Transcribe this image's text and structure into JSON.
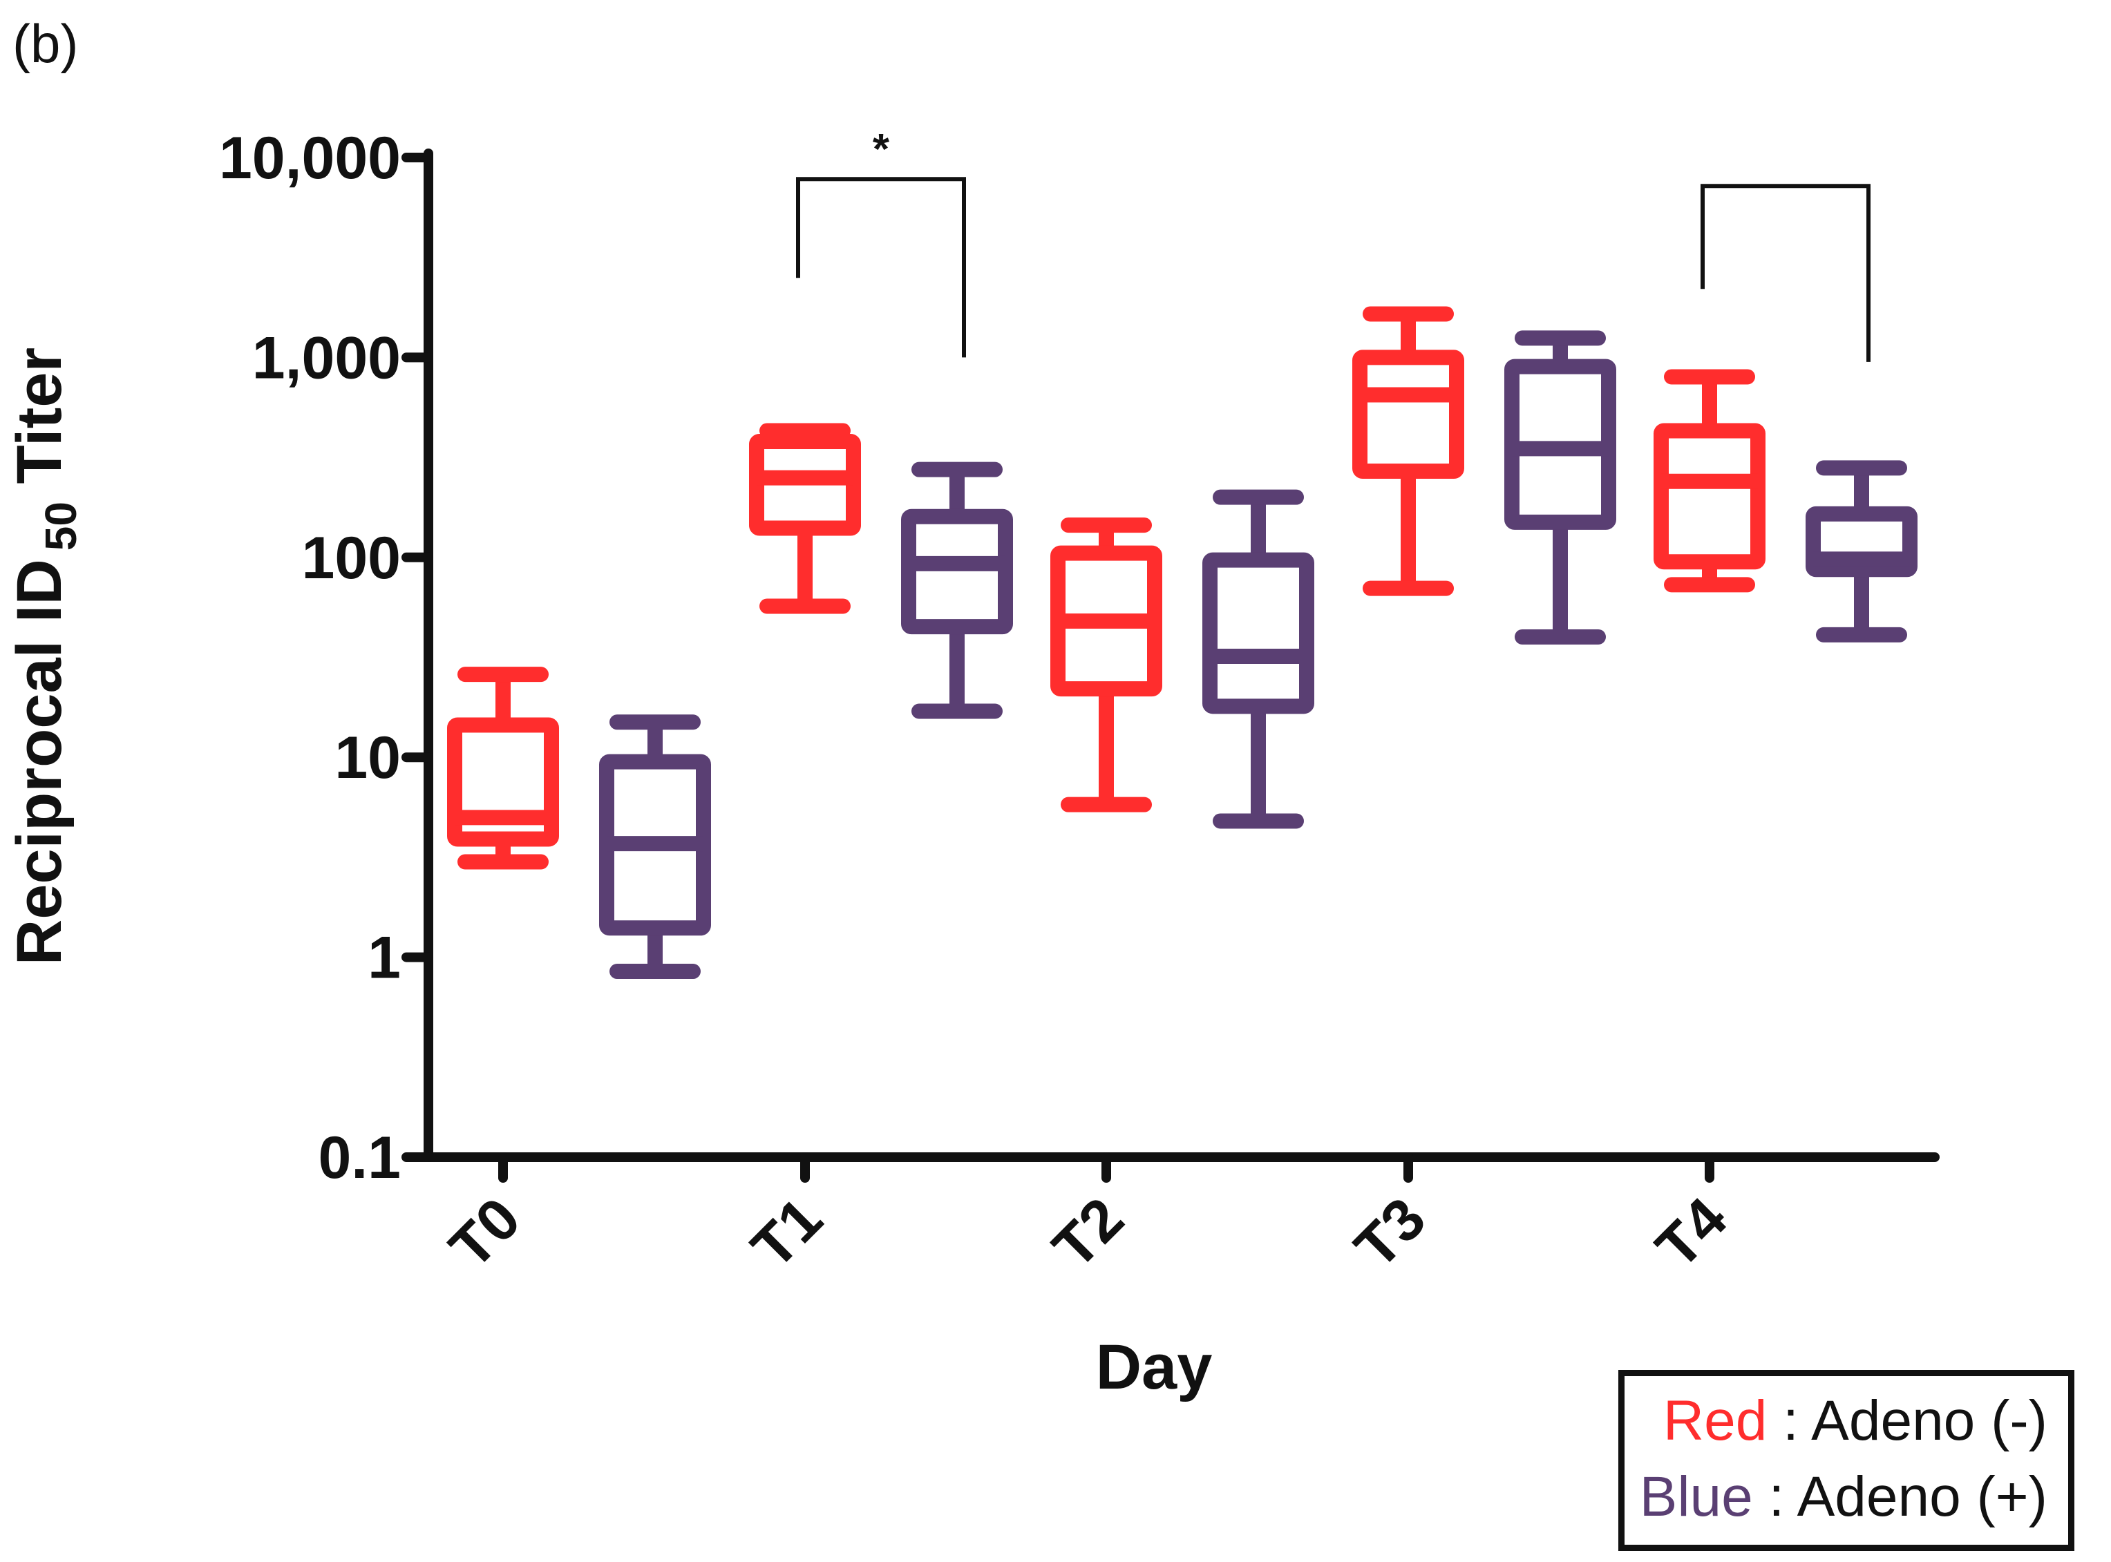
{
  "panel_label": "(b)",
  "colors": {
    "red": "#ff2d2d",
    "blue": "#5a3f73",
    "axis": "#111111"
  },
  "legend": {
    "rows": [
      {
        "color_word": "Red",
        "separator": " : ",
        "text": "Adeno (-)"
      },
      {
        "color_word": "Blue",
        "separator": " : ",
        "text": "Adeno (+)"
      }
    ]
  },
  "chart_data": {
    "type": "box",
    "title": "",
    "xlabel": "Day",
    "ylabel_main": "Reciprocal ID",
    "ylabel_sub": "50",
    "ylabel_tail": " Titer",
    "yscale": "log",
    "ylim": [
      0.1,
      10000
    ],
    "yticks": [
      {
        "value": 0.1,
        "label": "0.1"
      },
      {
        "value": 1,
        "label": "1"
      },
      {
        "value": 10,
        "label": "10"
      },
      {
        "value": 100,
        "label": "100"
      },
      {
        "value": 1000,
        "label": "1,000"
      },
      {
        "value": 10000,
        "label": "10,000"
      }
    ],
    "categories": [
      "T0",
      "T1",
      "T2",
      "T3",
      "T4"
    ],
    "series": [
      {
        "name": "Adeno (-)",
        "color": "red",
        "boxes": [
          {
            "min": 3.0,
            "q1": 3.9,
            "median": 5.0,
            "q3": 14.5,
            "max": 26
          },
          {
            "min": 57,
            "q1": 140,
            "median": 250,
            "q3": 380,
            "max": 430
          },
          {
            "min": 5.8,
            "q1": 22,
            "median": 48,
            "q3": 105,
            "max": 145
          },
          {
            "min": 70,
            "q1": 270,
            "median": 650,
            "q3": 1000,
            "max": 1650
          },
          {
            "min": 73,
            "q1": 95,
            "median": 240,
            "q3": 430,
            "max": 800
          }
        ]
      },
      {
        "name": "Adeno (+)",
        "color": "blue",
        "boxes": [
          {
            "min": 0.85,
            "q1": 1.4,
            "median": 3.7,
            "q3": 9.5,
            "max": 15
          },
          {
            "min": 17,
            "q1": 45,
            "median": 93,
            "q3": 160,
            "max": 275
          },
          {
            "min": 4.8,
            "q1": 18,
            "median": 32,
            "q3": 97,
            "max": 200
          },
          {
            "min": 40,
            "q1": 150,
            "median": 350,
            "q3": 900,
            "max": 1250
          },
          {
            "min": 41,
            "q1": 87,
            "median": 98,
            "q3": 165,
            "max": 280
          }
        ]
      }
    ],
    "annotations": [
      {
        "category": "T1",
        "label": "*",
        "left_value": 2500,
        "right_value": 1000,
        "top_value": 7800
      },
      {
        "category": "T4",
        "label": "",
        "left_value": 2200,
        "right_value": 950,
        "top_value": 7200
      }
    ]
  }
}
